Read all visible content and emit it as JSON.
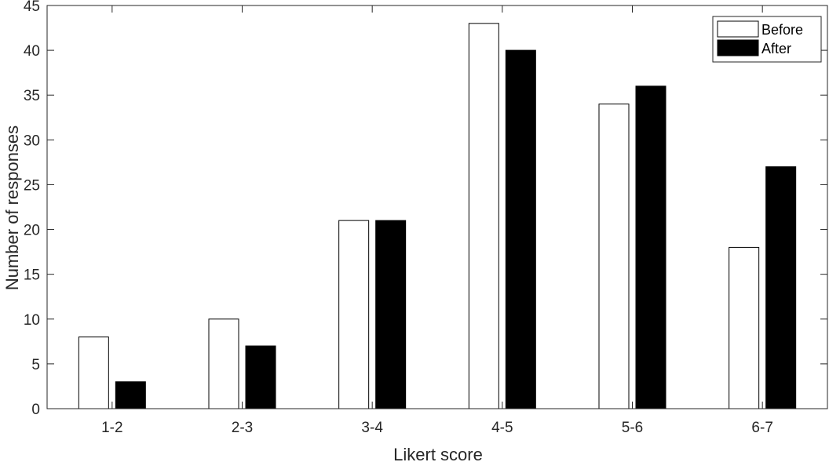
{
  "chart_data": {
    "type": "bar",
    "categories": [
      "1-2",
      "2-3",
      "3-4",
      "4-5",
      "5-6",
      "6-7"
    ],
    "series": [
      {
        "name": "Before",
        "values": [
          8,
          10,
          21,
          43,
          34,
          18
        ],
        "fill": "#ffffff",
        "stroke": "#000000"
      },
      {
        "name": "After",
        "values": [
          3,
          7,
          21,
          40,
          36,
          27
        ],
        "fill": "#000000",
        "stroke": "#000000"
      }
    ],
    "xlabel": "Likert score",
    "ylabel": "Number of responses",
    "ylim": [
      0,
      45
    ],
    "yticks": [
      0,
      5,
      10,
      15,
      20,
      25,
      30,
      35,
      40,
      45
    ],
    "grid": false,
    "legend": {
      "position": "top-right"
    }
  }
}
